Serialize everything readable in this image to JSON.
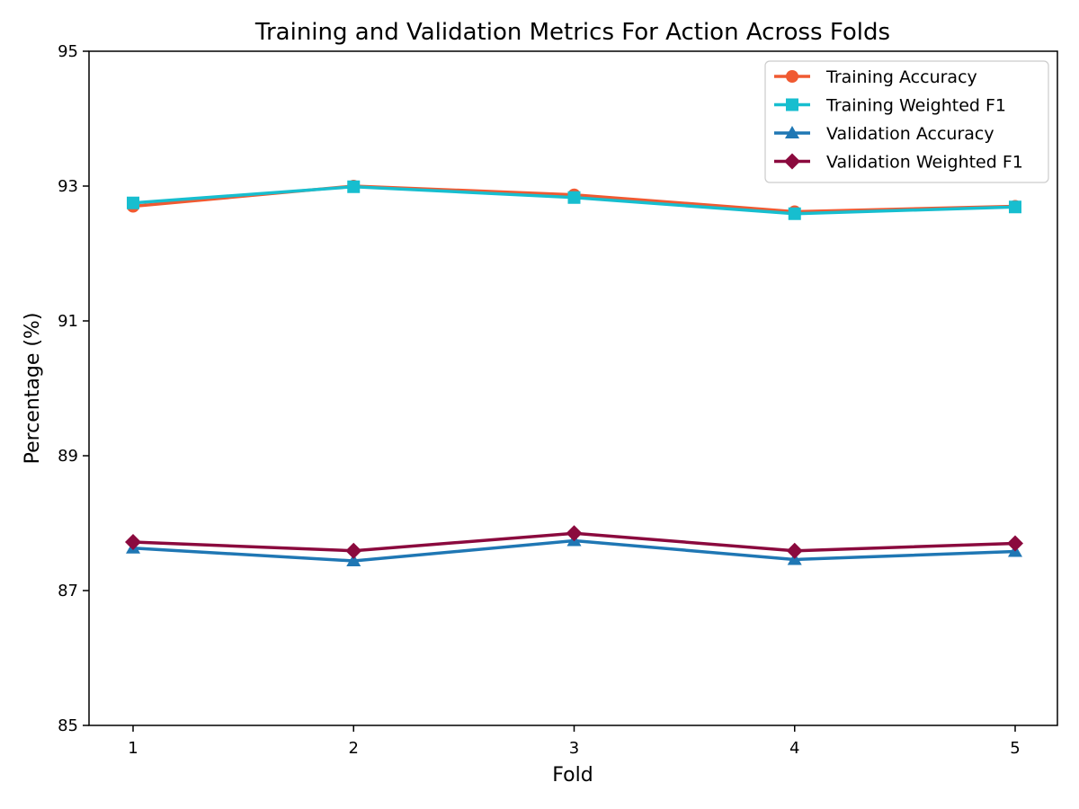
{
  "chart_data": {
    "type": "line",
    "title": "Training and Validation Metrics For Action Across Folds",
    "xlabel": "Fold",
    "ylabel": "Percentage (%)",
    "x": [
      1,
      2,
      3,
      4,
      5
    ],
    "x_ticks": [
      "1",
      "2",
      "3",
      "4",
      "5"
    ],
    "ylim": [
      85,
      95
    ],
    "y_ticks": [
      "85",
      "87",
      "89",
      "91",
      "93",
      "95"
    ],
    "grid": false,
    "legend_position": "top-right",
    "series": [
      {
        "name": "Training Accuracy",
        "values": [
          92.7,
          93.0,
          92.87,
          92.62,
          92.7
        ],
        "color": "#f05a32",
        "marker": "circle"
      },
      {
        "name": "Training Weighted F1",
        "values": [
          92.75,
          92.99,
          92.83,
          92.59,
          92.69
        ],
        "color": "#17becf",
        "marker": "square"
      },
      {
        "name": "Validation Accuracy",
        "values": [
          87.63,
          87.44,
          87.74,
          87.46,
          87.58
        ],
        "color": "#1f77b4",
        "marker": "triangle"
      },
      {
        "name": "Validation Weighted F1",
        "values": [
          87.72,
          87.59,
          87.85,
          87.59,
          87.7
        ],
        "color": "#8b0a3e",
        "marker": "diamond"
      }
    ]
  }
}
